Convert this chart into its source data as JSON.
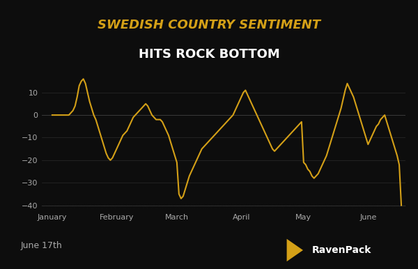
{
  "title_line1": "SWEDISH COUNTRY SENTIMENT",
  "title_line2": "HITS ROCK BOTTOM",
  "title_line1_color": "#D4A017",
  "title_line2_color": "#FFFFFF",
  "line_color": "#D4A017",
  "background_color": "#0D0D0D",
  "plot_bg_color": "#141414",
  "ylabel_color": "#AAAAAA",
  "xlabel_color": "#AAAAAA",
  "ylim": [
    -42,
    20
  ],
  "yticks": [
    -40,
    -30,
    -20,
    -10,
    0,
    10
  ],
  "date_label": "June 17th",
  "footer_text_color": "#AAAAAA",
  "tick_color": "#555555",
  "spine_color": "#555555",
  "months": [
    "January",
    "February",
    "March",
    "April",
    "May",
    "June"
  ],
  "month_positions": [
    0,
    31,
    60,
    91,
    121,
    152
  ],
  "x_values": [
    0,
    1,
    2,
    3,
    4,
    5,
    6,
    7,
    8,
    9,
    10,
    11,
    12,
    13,
    14,
    15,
    16,
    17,
    18,
    19,
    20,
    21,
    22,
    23,
    24,
    25,
    26,
    27,
    28,
    29,
    30,
    31,
    32,
    33,
    34,
    35,
    36,
    37,
    38,
    39,
    40,
    41,
    42,
    43,
    44,
    45,
    46,
    47,
    48,
    49,
    50,
    51,
    52,
    53,
    54,
    55,
    56,
    57,
    58,
    59,
    60,
    61,
    62,
    63,
    64,
    65,
    66,
    67,
    68,
    69,
    70,
    71,
    72,
    73,
    74,
    75,
    76,
    77,
    78,
    79,
    80,
    81,
    82,
    83,
    84,
    85,
    86,
    87,
    88,
    89,
    90,
    91,
    92,
    93,
    94,
    95,
    96,
    97,
    98,
    99,
    100,
    101,
    102,
    103,
    104,
    105,
    106,
    107,
    108,
    109,
    110,
    111,
    112,
    113,
    114,
    115,
    116,
    117,
    118,
    119,
    120,
    121,
    122,
    123,
    124,
    125,
    126,
    127,
    128,
    129,
    130,
    131,
    132,
    133,
    134,
    135,
    136,
    137,
    138,
    139,
    140,
    141,
    142,
    143,
    144,
    145,
    146,
    147,
    148,
    149,
    150,
    151,
    152,
    153,
    154,
    155,
    156,
    157,
    158,
    159,
    160,
    161,
    162,
    163,
    164,
    165,
    166,
    167,
    168
  ],
  "y_values": [
    0,
    0,
    0,
    0,
    0,
    0,
    0,
    0,
    0,
    1,
    2,
    4,
    8,
    13,
    15,
    16,
    14,
    10,
    6,
    3,
    0,
    -2,
    -5,
    -8,
    -11,
    -14,
    -17,
    -19,
    -20,
    -19,
    -17,
    -15,
    -13,
    -11,
    -9,
    -8,
    -7,
    -5,
    -3,
    -1,
    0,
    1,
    2,
    3,
    4,
    5,
    4,
    2,
    0,
    -1,
    -2,
    -2,
    -2,
    -3,
    -5,
    -7,
    -9,
    -12,
    -15,
    -18,
    -21,
    -35,
    -37,
    -36,
    -33,
    -30,
    -27,
    -25,
    -23,
    -21,
    -19,
    -17,
    -15,
    -14,
    -13,
    -12,
    -11,
    -10,
    -9,
    -8,
    -7,
    -6,
    -5,
    -4,
    -3,
    -2,
    -1,
    0,
    2,
    4,
    6,
    8,
    10,
    11,
    9,
    7,
    5,
    3,
    1,
    -1,
    -3,
    -5,
    -7,
    -9,
    -11,
    -13,
    -15,
    -16,
    -15,
    -14,
    -13,
    -12,
    -11,
    -10,
    -9,
    -8,
    -7,
    -6,
    -5,
    -4,
    -3,
    -21,
    -22,
    -24,
    -25,
    -27,
    -28,
    -27,
    -26,
    -24,
    -22,
    -20,
    -18,
    -15,
    -12,
    -9,
    -6,
    -3,
    0,
    3,
    7,
    11,
    14,
    12,
    10,
    8,
    5,
    2,
    -1,
    -4,
    -7,
    -10,
    -13,
    -11,
    -9,
    -7,
    -5,
    -4,
    -2,
    -1,
    0,
    -3,
    -6,
    -9,
    -12,
    -15,
    -18,
    -22,
    -40
  ]
}
